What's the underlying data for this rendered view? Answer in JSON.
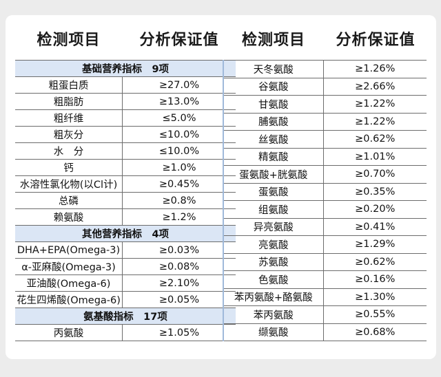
{
  "headers": {
    "left_item": "检测项目",
    "left_value": "分析保证值",
    "right_item": "检测项目",
    "right_value": "分析保证值"
  },
  "sections": {
    "basic": "基础营养指标　9项",
    "other": "其他营养指标　4项",
    "amino": "氨基酸指标　17项"
  },
  "basic_rows": [
    {
      "name": "粗蛋白质",
      "value": "≥27.0%"
    },
    {
      "name": "粗脂肪",
      "value": "≥13.0%"
    },
    {
      "name": "粗纤维",
      "value": "≤5.0%"
    },
    {
      "name": "粗灰分",
      "value": "≤10.0%"
    },
    {
      "name": "水　分",
      "value": "≤10.0%"
    },
    {
      "name": "钙",
      "value": "≥1.0%"
    },
    {
      "name": "水溶性氯化物(以Cl计)",
      "value": "≥0.45%"
    },
    {
      "name": "总磷",
      "value": "≥0.8%"
    },
    {
      "name": "赖氨酸",
      "value": "≥1.2%"
    }
  ],
  "other_rows": [
    {
      "name": "DHA+EPA(Omega-3)",
      "value": "≥0.03%"
    },
    {
      "name": "α-亚麻酸(Omega-3)",
      "value": "≥0.08%"
    },
    {
      "name": "亚油酸(Omega-6)",
      "value": "≥2.10%"
    },
    {
      "name": "花生四烯酸(Omega-6)",
      "value": "≥0.05%"
    }
  ],
  "amino_left_rows": [
    {
      "name": "丙氨酸",
      "value": "≥1.05%"
    }
  ],
  "amino_right_rows": [
    {
      "name": "天冬氨酸",
      "value": "≥1.26%"
    },
    {
      "name": "谷氨酸",
      "value": "≥2.66%"
    },
    {
      "name": "甘氨酸",
      "value": "≥1.22%"
    },
    {
      "name": "脯氨酸",
      "value": "≥1.22%"
    },
    {
      "name": "丝氨酸",
      "value": "≥0.62%"
    },
    {
      "name": "精氨酸",
      "value": "≥1.01%"
    },
    {
      "name": "蛋氨酸+胱氨酸",
      "value": "≥0.70%"
    },
    {
      "name": "蛋氨酸",
      "value": "≥0.35%"
    },
    {
      "name": "组氨酸",
      "value": "≥0.20%"
    },
    {
      "name": "异亮氨酸",
      "value": "≥0.41%"
    },
    {
      "name": "亮氨酸",
      "value": "≥1.29%"
    },
    {
      "name": "苏氨酸",
      "value": "≥0.62%"
    },
    {
      "name": "色氨酸",
      "value": "≥0.16%"
    },
    {
      "name": "苯丙氨酸+酪氨酸",
      "value": "≥1.30%"
    },
    {
      "name": "苯丙氨酸",
      "value": "≥0.55%"
    },
    {
      "name": "缬氨酸",
      "value": "≥0.68%"
    }
  ]
}
